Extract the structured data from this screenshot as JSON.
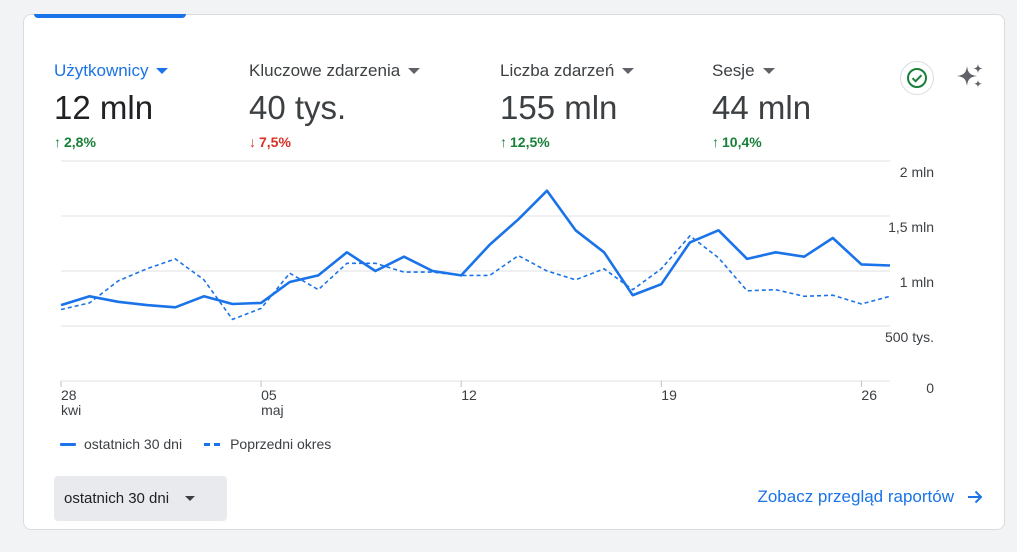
{
  "metrics": [
    {
      "label": "Użytkownicy",
      "value": "12 mln",
      "delta": "2,8%",
      "direction": "up",
      "active": true
    },
    {
      "label": "Kluczowe zdarzenia",
      "value": "40 tys.",
      "delta": "7,5%",
      "direction": "down",
      "active": false
    },
    {
      "label": "Liczba zdarzeń",
      "value": "155 mln",
      "delta": "12,5%",
      "direction": "up",
      "active": false
    },
    {
      "label": "Sesje",
      "value": "44 mln",
      "delta": "10,4%",
      "direction": "up",
      "active": false
    }
  ],
  "icons": {
    "check": "check-circle-icon",
    "sparkle": "sparkle-icon",
    "arrow": "arrow-right-icon"
  },
  "colors": {
    "accent": "#1a73e8",
    "up": "#188038",
    "down": "#d93025"
  },
  "chart_data": {
    "type": "line",
    "ylim": [
      0,
      2000000
    ],
    "y_ticks": [
      {
        "value": 2000000,
        "label": "2 mln"
      },
      {
        "value": 1500000,
        "label": "1,5 mln"
      },
      {
        "value": 1000000,
        "label": "1 mln"
      },
      {
        "value": 500000,
        "label": "500 tys."
      },
      {
        "value": 0,
        "label": "0"
      }
    ],
    "x_ticks": [
      {
        "index": 0,
        "label": "28",
        "sublabel": "kwi"
      },
      {
        "index": 7,
        "label": "05",
        "sublabel": "maj"
      },
      {
        "index": 14,
        "label": "12",
        "sublabel": ""
      },
      {
        "index": 21,
        "label": "19",
        "sublabel": ""
      },
      {
        "index": 28,
        "label": "26",
        "sublabel": ""
      }
    ],
    "grid": true,
    "legend_position": "bottom-left",
    "series": [
      {
        "name": "ostatnich 30 dni",
        "style": "solid",
        "values": [
          690000,
          770000,
          720000,
          690000,
          670000,
          770000,
          700000,
          710000,
          900000,
          960000,
          1170000,
          1000000,
          1130000,
          1000000,
          960000,
          1240000,
          1470000,
          1730000,
          1370000,
          1170000,
          780000,
          880000,
          1260000,
          1370000,
          1110000,
          1170000,
          1130000,
          1300000,
          1060000,
          1050000
        ]
      },
      {
        "name": "Poprzedni okres",
        "style": "dashed",
        "values": [
          650000,
          710000,
          910000,
          1020000,
          1110000,
          920000,
          560000,
          660000,
          980000,
          830000,
          1070000,
          1070000,
          990000,
          990000,
          960000,
          960000,
          1140000,
          1000000,
          920000,
          1020000,
          830000,
          1020000,
          1320000,
          1120000,
          820000,
          830000,
          770000,
          780000,
          700000,
          770000
        ]
      }
    ]
  },
  "period_select": {
    "value": "ostatnich 30 dni"
  },
  "report_link": {
    "label": "Zobacz przegląd raportów"
  }
}
